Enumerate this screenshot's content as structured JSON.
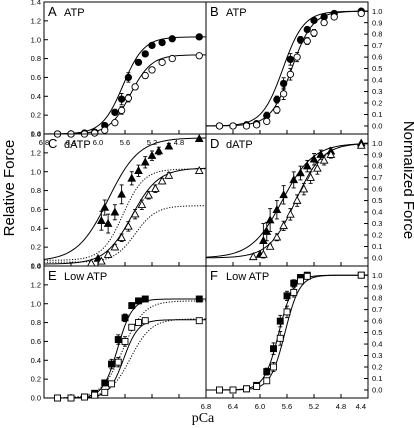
{
  "figure": {
    "left_axis_title": "Relative Force",
    "right_axis_title": "Normalized Force",
    "x_axis_title": "pCa"
  },
  "chart_data": [
    {
      "panel": "A",
      "title": "ATP",
      "type": "scatter",
      "xlabel": "pCa",
      "ylabel": "Relative Force",
      "xlim": [
        6.8,
        4.4
      ],
      "ylim": [
        0,
        1.4
      ],
      "xticks": [
        "6.8",
        "6.4",
        "6.0",
        "5.6",
        "5.2",
        "4.8"
      ],
      "yticks": [
        "0.0",
        "0.2",
        "0.4",
        "0.6",
        "0.8",
        "1.0",
        "1.2",
        "1.4"
      ],
      "y_side": "left",
      "grid": false,
      "series": [
        {
          "marker": "filled-circle",
          "fit": {
            "fmax": 1.03,
            "pca50": 5.63,
            "n": 2.8,
            "style": "solid"
          },
          "x": [
            6.6,
            6.4,
            6.2,
            6.05,
            5.9,
            5.75,
            5.65,
            5.55,
            5.4,
            5.3,
            5.2,
            5.05,
            4.9,
            4.5
          ],
          "y": [
            0.0,
            0.0,
            0.01,
            0.02,
            0.09,
            0.23,
            0.37,
            0.6,
            0.76,
            0.85,
            0.94,
            0.97,
            1.01,
            1.03
          ],
          "err": [
            0,
            0,
            0,
            0,
            0.02,
            0.03,
            0.06,
            0.05,
            0.03,
            0.02,
            0.02,
            0.02,
            0,
            0
          ]
        },
        {
          "marker": "open-circle",
          "fit": {
            "fmax": 0.84,
            "pca50": 5.52,
            "n": 2.8,
            "style": "solid"
          },
          "x": [
            6.6,
            6.4,
            6.2,
            6.05,
            5.9,
            5.75,
            5.65,
            5.55,
            5.45,
            5.3,
            5.2,
            5.05,
            4.9,
            4.5
          ],
          "y": [
            0.0,
            0.0,
            0.0,
            0.01,
            0.04,
            0.12,
            0.25,
            0.38,
            0.5,
            0.62,
            0.68,
            0.76,
            0.8,
            0.83
          ],
          "err": [
            0,
            0,
            0,
            0,
            0.02,
            0.02,
            0.04,
            0.04,
            0.03,
            0.03,
            0.03,
            0.02,
            0.01,
            0
          ]
        }
      ]
    },
    {
      "panel": "B",
      "title": "ATP",
      "type": "scatter",
      "xlabel": "pCa",
      "ylabel": "Normalized Force",
      "xlim": [
        6.8,
        4.4
      ],
      "ylim": [
        -0.07,
        1.08
      ],
      "xticks": [],
      "yticks": [
        "0.0",
        "0.1",
        "0.2",
        "0.3",
        "0.4",
        "0.5",
        "0.6",
        "0.7",
        "0.8",
        "0.9",
        "1.0"
      ],
      "y_side": "right",
      "grid": false,
      "series": [
        {
          "marker": "filled-circle",
          "fit": {
            "fmax": 1.0,
            "pca50": 5.66,
            "n": 2.8,
            "style": "solid"
          },
          "x": [
            6.6,
            6.4,
            6.2,
            6.05,
            5.9,
            5.75,
            5.65,
            5.55,
            5.4,
            5.3,
            5.2,
            5.05,
            4.9,
            4.5
          ],
          "y": [
            0.0,
            0.0,
            0.01,
            0.02,
            0.09,
            0.23,
            0.37,
            0.58,
            0.75,
            0.84,
            0.92,
            0.95,
            0.98,
            1.0
          ],
          "err": [
            0,
            0,
            0,
            0,
            0.03,
            0.03,
            0.05,
            0.05,
            0.03,
            0.02,
            0.02,
            0.02,
            0,
            0
          ]
        },
        {
          "marker": "open-circle",
          "fit": {
            "fmax": 1.0,
            "pca50": 5.53,
            "n": 2.8,
            "style": "solid"
          },
          "x": [
            6.6,
            6.4,
            6.2,
            6.05,
            5.9,
            5.75,
            5.65,
            5.55,
            5.45,
            5.3,
            5.2,
            5.05,
            4.9,
            4.5
          ],
          "y": [
            0.0,
            0.0,
            0.0,
            0.01,
            0.04,
            0.14,
            0.28,
            0.45,
            0.6,
            0.74,
            0.81,
            0.9,
            0.95,
            0.98
          ],
          "err": [
            0,
            0,
            0,
            0,
            0.02,
            0.03,
            0.05,
            0.05,
            0.04,
            0.03,
            0.03,
            0.02,
            0.01,
            0
          ]
        }
      ]
    },
    {
      "panel": "C",
      "title": "dATP",
      "type": "scatter",
      "xlabel": "pCa",
      "ylabel": "Relative Force",
      "xlim": [
        6.8,
        4.4
      ],
      "ylim": [
        0,
        1.4
      ],
      "xticks": [],
      "yticks": [
        "0.0",
        "0.2",
        "0.4",
        "0.6",
        "0.8",
        "1.0",
        "1.2",
        "1.4"
      ],
      "y_side": "left",
      "grid": false,
      "series": [
        {
          "marker": "filled-triangle",
          "fit": {
            "fmax": 1.36,
            "pca50": 5.85,
            "n": 1.9,
            "base": 0.05,
            "style": "solid"
          },
          "x": [
            6.0,
            5.95,
            5.9,
            5.85,
            5.75,
            5.65,
            5.5,
            5.4,
            5.3,
            5.2,
            5.1,
            4.95,
            4.5
          ],
          "y": [
            0.08,
            0.48,
            0.62,
            0.45,
            0.57,
            0.76,
            0.93,
            1.01,
            1.1,
            1.17,
            1.22,
            1.27,
            1.35
          ],
          "err": [
            0,
            0.1,
            0.08,
            0.1,
            0.08,
            0.1,
            0.07,
            0.06,
            0.06,
            0.05,
            0.04,
            0.03,
            0
          ]
        },
        {
          "marker": "open-triangle",
          "fit": {
            "fmax": 1.04,
            "pca50": 5.5,
            "n": 2.2,
            "base": 0.02,
            "style": "solid"
          },
          "x": [
            6.1,
            5.95,
            5.85,
            5.75,
            5.65,
            5.55,
            5.45,
            5.35,
            5.25,
            5.15,
            5.05,
            4.95,
            4.5
          ],
          "y": [
            0.03,
            0.05,
            0.12,
            0.2,
            0.3,
            0.42,
            0.55,
            0.65,
            0.75,
            0.82,
            0.9,
            0.96,
            1.01
          ],
          "err": [
            0,
            0,
            0.02,
            0.03,
            0.04,
            0.05,
            0.05,
            0.05,
            0.04,
            0.04,
            0.03,
            0.03,
            0.02
          ]
        },
        {
          "marker": "none",
          "fit": {
            "fmax": 1.03,
            "pca50": 5.63,
            "n": 2.8,
            "base": 0.06,
            "style": "dotted"
          },
          "x": [],
          "y": [],
          "err": []
        },
        {
          "marker": "none",
          "fit": {
            "fmax": 0.64,
            "pca50": 5.45,
            "n": 2.8,
            "base": 0.04,
            "style": "dotted"
          },
          "x": [],
          "y": [],
          "err": []
        }
      ]
    },
    {
      "panel": "D",
      "title": "dATP",
      "type": "scatter",
      "xlabel": "pCa",
      "ylabel": "Normalized Force",
      "xlim": [
        6.8,
        4.4
      ],
      "ylim": [
        -0.07,
        1.08
      ],
      "xticks": [],
      "yticks": [
        "0.0",
        "0.1",
        "0.2",
        "0.3",
        "0.4",
        "0.5",
        "0.6",
        "0.7",
        "0.8",
        "0.9",
        "1.0"
      ],
      "y_side": "right",
      "grid": false,
      "series": [
        {
          "marker": "filled-triangle",
          "fit": {
            "fmax": 1.0,
            "pca50": 5.67,
            "n": 1.9,
            "style": "solid"
          },
          "x": [
            6.0,
            5.95,
            5.9,
            5.85,
            5.75,
            5.65,
            5.5,
            5.4,
            5.3,
            5.2,
            5.1,
            4.95,
            4.5
          ],
          "y": [
            0.03,
            0.15,
            0.23,
            0.33,
            0.42,
            0.55,
            0.68,
            0.74,
            0.8,
            0.86,
            0.9,
            0.93,
            1.0
          ],
          "err": [
            0,
            0.15,
            0.08,
            0.1,
            0.08,
            0.08,
            0.07,
            0.06,
            0.05,
            0.05,
            0.04,
            0.03,
            0
          ]
        },
        {
          "marker": "open-triangle",
          "fit": {
            "fmax": 1.0,
            "pca50": 5.47,
            "n": 2.2,
            "style": "solid"
          },
          "x": [
            6.1,
            5.95,
            5.85,
            5.75,
            5.65,
            5.55,
            5.45,
            5.35,
            5.25,
            5.15,
            5.05,
            4.95,
            4.5
          ],
          "y": [
            0.01,
            0.03,
            0.1,
            0.18,
            0.28,
            0.38,
            0.5,
            0.6,
            0.7,
            0.78,
            0.85,
            0.9,
            0.98
          ],
          "err": [
            0,
            0,
            0.02,
            0.03,
            0.04,
            0.05,
            0.05,
            0.05,
            0.05,
            0.05,
            0.04,
            0.03,
            0.02
          ]
        }
      ]
    },
    {
      "panel": "E",
      "title": "Low ATP",
      "type": "scatter",
      "xlabel": "pCa",
      "ylabel": "Relative Force",
      "xlim": [
        6.8,
        4.4
      ],
      "ylim": [
        0,
        1.4
      ],
      "xticks": [],
      "yticks": [
        "0.0",
        "0.2",
        "0.4",
        "0.6",
        "0.8",
        "1.0",
        "1.2",
        "1.4"
      ],
      "y_side": "left",
      "grid": false,
      "series": [
        {
          "marker": "filled-square",
          "fit": {
            "fmax": 1.05,
            "pca50": 5.71,
            "n": 4.0,
            "style": "solid"
          },
          "x": [
            6.6,
            6.4,
            6.2,
            6.05,
            5.9,
            5.8,
            5.7,
            5.6,
            5.5,
            5.4,
            5.3,
            4.5
          ],
          "y": [
            0.0,
            0.0,
            0.01,
            0.05,
            0.16,
            0.36,
            0.62,
            0.85,
            0.98,
            1.03,
            1.05,
            1.05
          ],
          "err": [
            0,
            0,
            0,
            0.01,
            0.03,
            0.05,
            0.05,
            0.04,
            0.03,
            0.02,
            0.02,
            0
          ]
        },
        {
          "marker": "open-square",
          "fit": {
            "fmax": 0.83,
            "pca50": 5.62,
            "n": 4.0,
            "style": "solid"
          },
          "x": [
            6.6,
            6.4,
            6.2,
            6.05,
            5.9,
            5.8,
            5.7,
            5.6,
            5.5,
            5.4,
            5.3,
            4.5
          ],
          "y": [
            0.0,
            0.0,
            0.01,
            0.03,
            0.06,
            0.15,
            0.38,
            0.6,
            0.75,
            0.8,
            0.82,
            0.82
          ],
          "err": [
            0,
            0,
            0,
            0.01,
            0.02,
            0.03,
            0.05,
            0.05,
            0.03,
            0.02,
            0.02,
            0
          ]
        },
        {
          "marker": "none",
          "fit": {
            "fmax": 1.03,
            "pca50": 5.63,
            "n": 2.8,
            "style": "dotted"
          },
          "x": [],
          "y": [],
          "err": []
        },
        {
          "marker": "none",
          "fit": {
            "fmax": 0.84,
            "pca50": 5.52,
            "n": 2.8,
            "style": "dotted"
          },
          "x": [],
          "y": [],
          "err": []
        }
      ]
    },
    {
      "panel": "F",
      "title": "Low ATP",
      "type": "scatter",
      "xlabel": "pCa",
      "ylabel": "Normalized Force",
      "xlim": [
        6.8,
        4.4
      ],
      "ylim": [
        -0.07,
        1.08
      ],
      "xticks": [
        "6.8",
        "6.4",
        "6.0",
        "5.6",
        "5.2",
        "4.8",
        "4.4"
      ],
      "yticks": [
        "0.0",
        "0.1",
        "0.2",
        "0.3",
        "0.4",
        "0.5",
        "0.6",
        "0.7",
        "0.8",
        "0.9",
        "1.0"
      ],
      "y_side": "right",
      "grid": false,
      "series": [
        {
          "marker": "filled-square",
          "fit": {
            "fmax": 1.0,
            "pca50": 5.72,
            "n": 4.0,
            "style": "solid"
          },
          "x": [
            6.6,
            6.4,
            6.2,
            6.05,
            5.9,
            5.8,
            5.7,
            5.6,
            5.5,
            5.4,
            5.3,
            4.5
          ],
          "y": [
            0.0,
            0.0,
            0.01,
            0.04,
            0.16,
            0.36,
            0.6,
            0.82,
            0.93,
            0.98,
            1.0,
            1.0
          ],
          "err": [
            0,
            0,
            0,
            0.01,
            0.03,
            0.05,
            0.05,
            0.04,
            0.03,
            0.02,
            0.01,
            0
          ]
        },
        {
          "marker": "open-square",
          "fit": {
            "fmax": 1.0,
            "pca50": 5.63,
            "n": 4.0,
            "style": "solid"
          },
          "x": [
            6.6,
            6.4,
            6.2,
            6.05,
            5.9,
            5.8,
            5.7,
            5.6,
            5.5,
            5.4,
            5.3,
            4.5
          ],
          "y": [
            0.0,
            0.0,
            0.01,
            0.03,
            0.08,
            0.2,
            0.45,
            0.68,
            0.85,
            0.95,
            0.99,
            1.0
          ],
          "err": [
            0,
            0,
            0,
            0.01,
            0.02,
            0.04,
            0.06,
            0.05,
            0.04,
            0.02,
            0.01,
            0
          ]
        }
      ]
    }
  ]
}
